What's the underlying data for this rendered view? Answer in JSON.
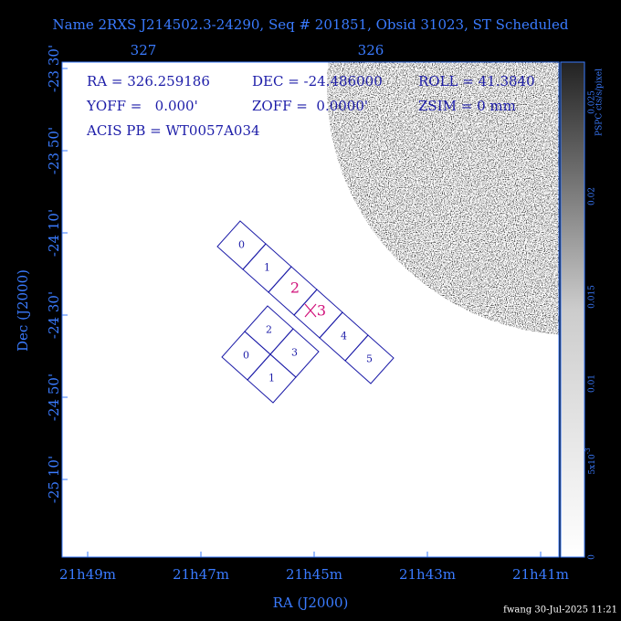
{
  "title": "Name 2RXS J214502.3-24290, Seq # 201851, Obsid 31023, ST Scheduled",
  "top_axis": [
    "327",
    "326"
  ],
  "left_axis": [
    "-23 30'",
    "-23 50'",
    "-24 10'",
    "-24 30'",
    "-24 50'",
    "-25 10'"
  ],
  "bottom_axis": [
    "21h49m",
    "21h47m",
    "21h45m",
    "21h43m",
    "21h41m"
  ],
  "x_label": "RA (J2000)",
  "y_label": "Dec (J2000)",
  "colorbar": {
    "ticks": [
      "0",
      {
        "base": "5x10",
        "exp": "-3"
      },
      "0.01",
      "0.015",
      "0.02",
      "0.025"
    ],
    "unit": "PSPC cts/s/pixel"
  },
  "info": [
    "RA = 326.259186",
    "DEC = -24.486000",
    "ROLL = 41.3840",
    "YOFF =   0.000'",
    "ZOFF =  0.0000'",
    "ZSIM = 0 mm",
    "ACIS PB = WT0057A034"
  ],
  "acis_s": [
    "0",
    "1",
    "2",
    "3",
    "4",
    "5"
  ],
  "acis_i": [
    "2",
    "3",
    "0",
    "1"
  ],
  "aimpoint": [
    "2",
    "3"
  ],
  "footer": "fwang 30-Jul-2025 11:21"
}
